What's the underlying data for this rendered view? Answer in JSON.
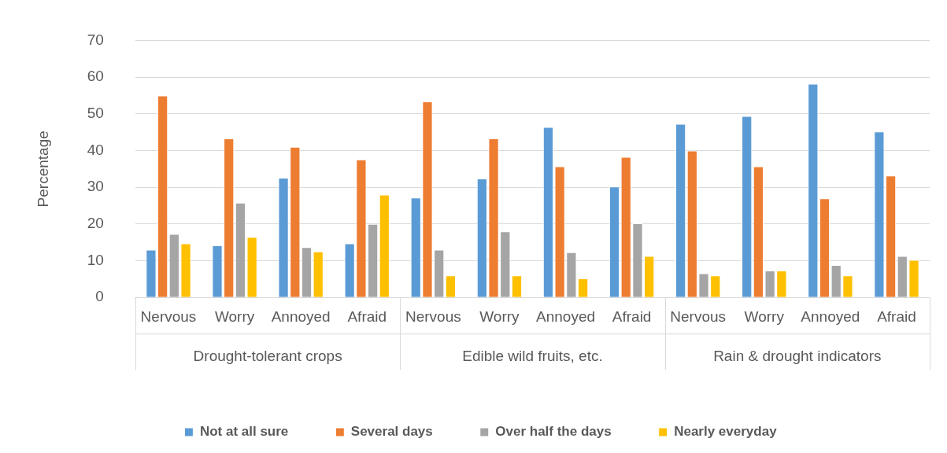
{
  "chart_data": {
    "type": "bar",
    "ylabel": "Percentage",
    "categories": [
      "Nervous",
      "Worry",
      "Annoyed",
      "Afraid",
      "Nervous",
      "Worry",
      "Annoyed",
      "Afraid",
      "Nervous",
      "Worry",
      "Annoyed",
      "Afraid"
    ],
    "annotations": [
      "Drought-tolerant crops",
      "Edible wild fruits, etc.",
      "Rain & drought indicators"
    ],
    "series": [
      {
        "name": "Not at all sure",
        "color": "#5b9bd5",
        "values": [
          13,
          14.2,
          32.6,
          14.7,
          27.2,
          32.4,
          46.4,
          30.2,
          47.3,
          49.4,
          58.2,
          45.2
        ]
      },
      {
        "name": "Several days",
        "color": "#ed7d31",
        "values": [
          55,
          43.3,
          41,
          37.6,
          53.4,
          43.3,
          35.7,
          38.3,
          40,
          35.7,
          27,
          33.2
        ]
      },
      {
        "name": "Over half the days",
        "color": "#a5a5a5",
        "values": [
          17.3,
          25.8,
          13.7,
          20,
          13,
          18,
          12.3,
          20.2,
          6.6,
          7.3,
          8.8,
          11.3
        ]
      },
      {
        "name": "Nearly everyday",
        "color": "#ffc000",
        "values": [
          14.7,
          16.5,
          12.5,
          28,
          6,
          6,
          5.2,
          11.3,
          6,
          7.3,
          6,
          10.2
        ]
      }
    ],
    "ylim": [
      0,
      70
    ],
    "yticks": [
      0,
      10,
      20,
      30,
      40,
      50,
      60,
      70
    ],
    "grid": "y",
    "legend": "bottom"
  }
}
